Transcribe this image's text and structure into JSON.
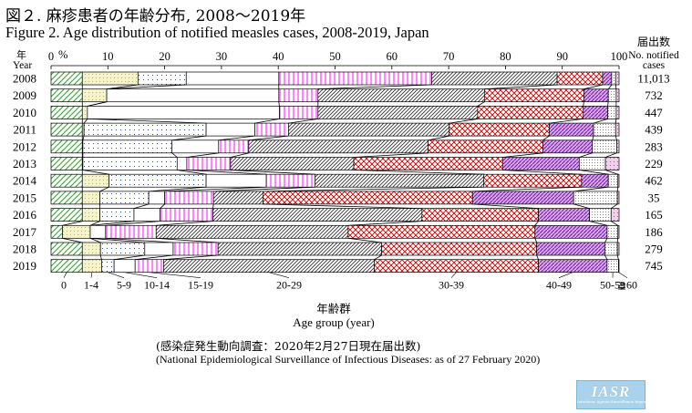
{
  "title_jp": "図２. 麻疹患者の年齢分布, 2008〜2019年",
  "title_en": "Figure 2. Age distribution of notified measles cases, 2008-2019, Japan",
  "source_jp": "(感染症発生動向調査：2020年2月27日現在届出数)",
  "source_en": "(National Epidemiological Surveillance of Infectious Diseases: as of 27 February 2020)",
  "logo_text": "IASR",
  "chart_data": {
    "type": "bar",
    "stacked": "100%",
    "orientation": "horizontal",
    "year_axis_label_jp": "年",
    "year_axis_label_en": "Year",
    "x_unit": "%",
    "x_ticks": [
      0,
      10,
      20,
      30,
      40,
      50,
      60,
      70,
      80,
      90,
      100
    ],
    "xlim": [
      0,
      100
    ],
    "xlabel_jp": "年齢群",
    "xlabel_en": "Age group (year)",
    "counts_header": [
      "届出数",
      "No. notified",
      "cases"
    ],
    "categories": [
      "2008",
      "2009",
      "2010",
      "2011",
      "2012",
      "2013",
      "2014",
      "2015",
      "2016",
      "2017",
      "2018",
      "2019"
    ],
    "counts": [
      "11,013",
      "732",
      "447",
      "439",
      "283",
      "229",
      "462",
      "35",
      "165",
      "186",
      "279",
      "745"
    ],
    "age_groups": [
      "0",
      "1-4",
      "5-9",
      "10-14",
      "15-19",
      "20-29",
      "30-39",
      "40-49",
      "50-59",
      "≧60"
    ],
    "group_colors": {
      "0": "#2ca02c",
      "1-4": "#f8f4c9",
      "5-9": "#1f77b4",
      "10-14": "#ffffff",
      "15-19": "#ff33ff",
      "20-29": "#333333",
      "30-39": "#cc0000",
      "40-49": "#9933cc",
      "50-59": "#999999",
      "≧60": "#cc66cc"
    },
    "cumulative_percent": [
      [
        5.5,
        15.3,
        23.8,
        40.1,
        67.0,
        89.1,
        97.1,
        98.7,
        99.4,
        100
      ],
      [
        5.5,
        9.8,
        9.8,
        40.1,
        47.0,
        76.3,
        93.8,
        98.1,
        99.5,
        100
      ],
      [
        5.5,
        6.4,
        6.4,
        40.2,
        47.0,
        75.1,
        93.7,
        98.0,
        99.5,
        100
      ],
      [
        5.5,
        5.8,
        27.3,
        35.9,
        41.8,
        70.1,
        87.7,
        95.5,
        99.4,
        100
      ],
      [
        5.5,
        5.6,
        21.3,
        29.5,
        34.8,
        66.4,
        86.6,
        95.3,
        99.6,
        100
      ],
      [
        5.5,
        5.6,
        22.2,
        23.9,
        31.6,
        53.3,
        79.5,
        93.0,
        97.6,
        100
      ],
      [
        5.5,
        10.2,
        27.3,
        37.9,
        46.5,
        76.2,
        93.4,
        98.1,
        99.8,
        100
      ],
      [
        5.5,
        8.6,
        17.2,
        20.0,
        28.6,
        37.3,
        74.2,
        92.0,
        99.7,
        100
      ],
      [
        5.5,
        8.6,
        14.6,
        19.2,
        28.5,
        65.3,
        85.8,
        94.8,
        98.6,
        100
      ],
      [
        2.0,
        6.9,
        6.9,
        9.6,
        18.5,
        52.3,
        85.2,
        97.9,
        99.8,
        100
      ],
      [
        5.5,
        8.7,
        16.5,
        21.5,
        29.4,
        58.2,
        85.5,
        97.5,
        99.7,
        100
      ],
      [
        5.5,
        8.9,
        11.1,
        14.8,
        19.8,
        56.9,
        85.8,
        97.9,
        99.9,
        100
      ]
    ]
  }
}
